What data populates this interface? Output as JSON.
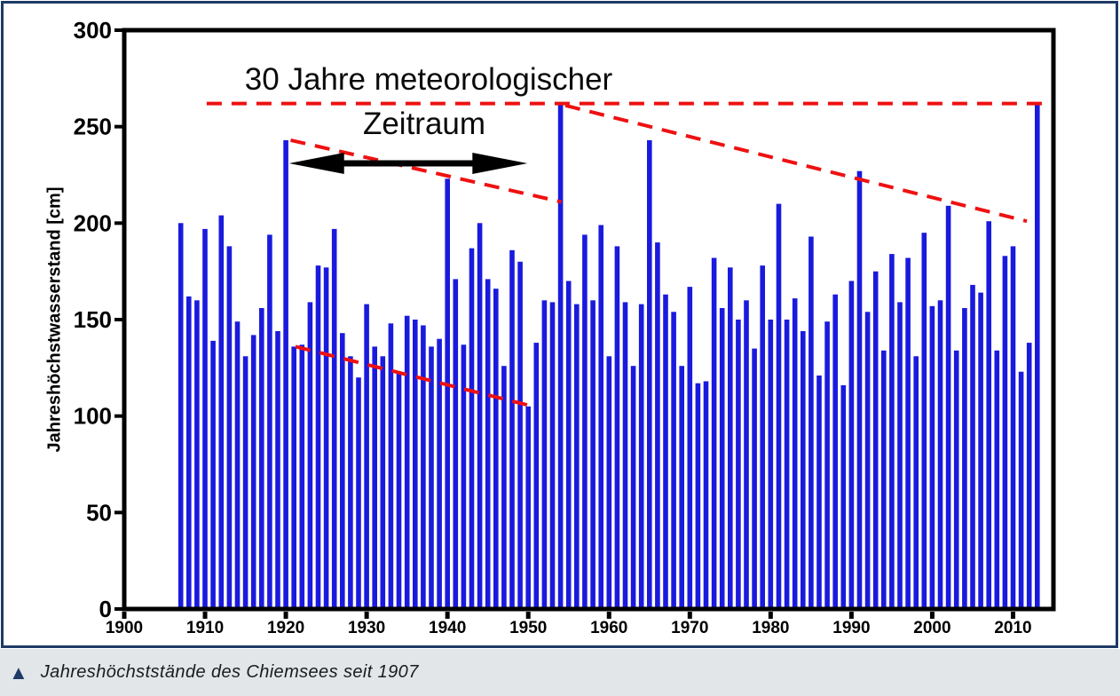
{
  "chart_data": {
    "type": "bar",
    "title": "",
    "ylabel": "Jahreshöchstwasserstand [cm]",
    "annotation": {
      "line1": "30 Jahre meteorologischer",
      "line2": "Zeitraum"
    },
    "year_start": 1907,
    "year_end": 2013,
    "values": [
      200,
      162,
      160,
      197,
      139,
      204,
      188,
      149,
      131,
      142,
      156,
      194,
      144,
      243,
      136,
      137,
      159,
      178,
      177,
      197,
      143,
      131,
      120,
      158,
      136,
      131,
      148,
      123,
      152,
      150,
      147,
      136,
      140,
      223,
      171,
      137,
      187,
      200,
      171,
      166,
      126,
      186,
      180,
      105,
      138,
      160,
      159,
      262,
      170,
      158,
      194,
      160,
      199,
      131,
      188,
      159,
      126,
      158,
      243,
      190,
      163,
      154,
      126,
      167,
      117,
      118,
      182,
      156,
      177,
      150,
      160,
      135,
      178,
      150,
      210,
      150,
      161,
      144,
      193,
      121,
      149,
      163,
      116,
      170,
      227,
      154,
      175,
      134,
      184,
      159,
      182,
      131,
      195,
      157,
      160,
      209,
      134,
      156,
      168,
      164,
      201,
      134,
      183,
      188,
      123,
      138,
      262
    ],
    "y_ticks": [
      0,
      50,
      100,
      150,
      200,
      250,
      300
    ],
    "x_ticks": [
      1900,
      1910,
      1920,
      1930,
      1940,
      1950,
      1960,
      1970,
      1980,
      1990,
      2000,
      2010
    ],
    "ylim": [
      0,
      300
    ],
    "xlim": [
      1900,
      2015
    ],
    "grid": false,
    "bar_color": "#1a1ade",
    "dash_color": "#ee1111",
    "frame_color": "#000000",
    "dashed_lines_cm": [
      {
        "name": "record-level-line",
        "x1": 1910.2,
        "y1": 262,
        "x2": 2014.0,
        "y2": 262
      },
      {
        "name": "trend-peaks-1920-1954",
        "x1": 1920.6,
        "y1": 243,
        "x2": 1954.1,
        "y2": 211
      },
      {
        "name": "trend-peaks-1954-2013",
        "x1": 1954.6,
        "y1": 261,
        "x2": 2011.7,
        "y2": 201
      },
      {
        "name": "trend-lows-1921-1950",
        "x1": 1921.2,
        "y1": 136,
        "x2": 1950.6,
        "y2": 105
      }
    ],
    "arrow_cm": {
      "x1": 1920.4,
      "x2": 1949.9,
      "y": 231
    }
  },
  "caption": {
    "marker": "▲",
    "text": "Jahreshöchststände des Chiemsees seit 1907"
  },
  "panel": {
    "border_color": "#1e3a66",
    "caption_bg": "#e2e6e9"
  }
}
